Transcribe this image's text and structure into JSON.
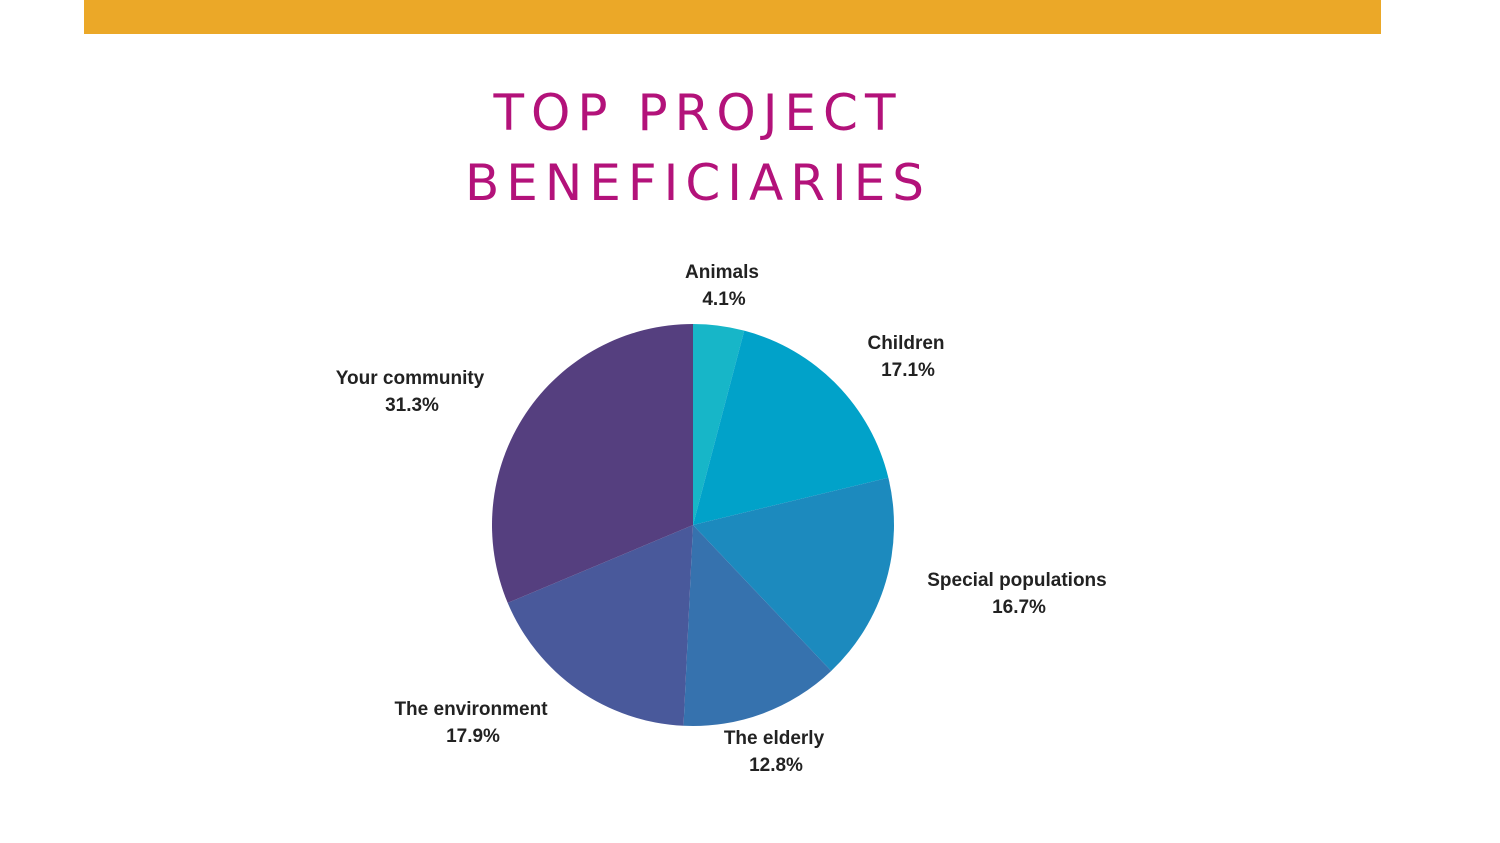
{
  "colors": {
    "top_bar": "#EBA828",
    "title": "#B3127A",
    "label_text": "#222222"
  },
  "header": {
    "title_line1": "TOP PROJECT",
    "title_line2": "BENEFICIARIES"
  },
  "chart_data": {
    "type": "pie",
    "title": "TOP PROJECT BENEFICIARIES",
    "start_angle_deg": 0,
    "direction": "clockwise",
    "slices": [
      {
        "label": "Animals",
        "value": 4.1,
        "value_label": "4.1%",
        "color": "#17B6C8"
      },
      {
        "label": "Children",
        "value": 17.1,
        "value_label": "17.1%",
        "color": "#01A2C9"
      },
      {
        "label": "Special populations",
        "value": 16.7,
        "value_label": "16.7%",
        "color": "#1C8ABE"
      },
      {
        "label": "The elderly",
        "value": 12.8,
        "value_label": "12.8%",
        "color": "#3672AE"
      },
      {
        "label": "The environment",
        "value": 17.9,
        "value_label": "17.9%",
        "color": "#49599B"
      },
      {
        "label": "Your community",
        "value": 31.3,
        "value_label": "31.3%",
        "color": "#553F7F"
      }
    ]
  }
}
